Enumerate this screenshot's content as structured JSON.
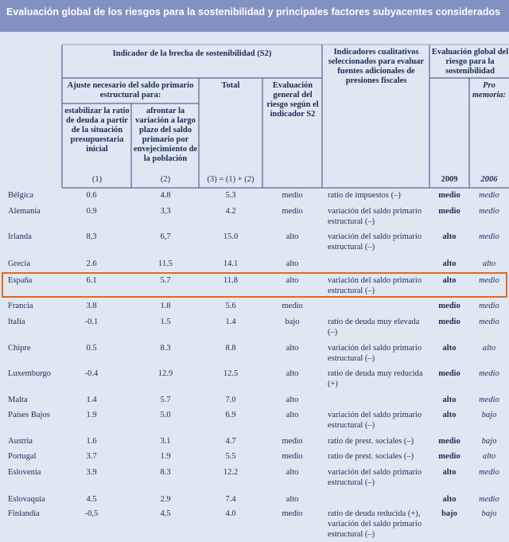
{
  "title": "Evaluación global de los riesgos para la sostenibilidad y principales factores subyacentes considerados",
  "header": {
    "group": "Indicador de la brecha de sostenibilidad (S2)",
    "subgroup": "Ajuste necesario del saldo primario estructural para:",
    "col1": "estabilizar la ratio de deuda a partir de la situación presupuestaria inicial",
    "col1_num": "(1)",
    "col2": "afrontar la variación a largo plazo del saldo primario por envejecimiento de la población",
    "col2_num": "(2)",
    "total": "Total",
    "total_num": "(3) = (1) + (2)",
    "evaluation": "Evaluación general del riesgo según el indicador S2",
    "indicators": "Indicadores cualitativos seleccionados para evaluar fuentes adicionales de presiones fiscales",
    "global": "Evaluación global del riesgo para la sostenibilidad",
    "year1": "2009",
    "memo": "Pro memoria:",
    "year2": "2006"
  },
  "table": {
    "rows": [
      {
        "country": "Bélgica",
        "c1": "0.6",
        "c2": "4.8",
        "total": "5.3",
        "eval": "medio",
        "indicator": "ratio de impuestos (–)",
        "r2009": "medio",
        "r2006": "medio"
      },
      {
        "country": "Alemania",
        "c1": "0.9",
        "c2": "3,3",
        "total": "4.2",
        "eval": "medio",
        "indicator": "variación del saldo primario estructural (–)",
        "r2009": "medio",
        "r2006": "medio"
      },
      {
        "country": "Irlanda",
        "c1": "8,3",
        "c2": "6,7",
        "total": "15.0",
        "eval": "alto",
        "indicator": "variación del saldo primario estructural (–)",
        "r2009": "alto",
        "r2006": "medio"
      },
      {
        "country": "Grecia",
        "c1": "2.6",
        "c2": "11.5",
        "total": "14.1",
        "eval": "alto",
        "r2009": "alto",
        "r2006": "alto"
      },
      {
        "country": "España",
        "c1": "6.1",
        "c2": "5.7",
        "total": "11.8",
        "eval": "alto",
        "indicator": "variación del saldo primario estructural (–)",
        "r2009": "alto",
        "r2006": "medio"
      },
      {
        "country": "Francia",
        "c1": "3.8",
        "c2": "1.8",
        "total": "5.6",
        "eval": "medio",
        "r2009": "medio",
        "r2006": "medio"
      },
      {
        "country": "Italia",
        "c1": "-0.1",
        "c2": "1.5",
        "total": "1.4",
        "eval": "bajo",
        "indicator": "ratio de deuda muy elevada (–)",
        "r2009": "medio",
        "r2006": "medio"
      },
      {
        "country": "Chipre",
        "c1": "0.5",
        "c2": "8.3",
        "total": "8.8",
        "eval": "alto",
        "indicator": "variación del saldo primario estructural (–)",
        "r2009": "alto",
        "r2006": "alto"
      },
      {
        "country": "Luxemburgo",
        "c1": "-0.4",
        "c2": "12.9",
        "total": "12.5",
        "eval": "alto",
        "indicator": "ratio de deuda muy reducida (+)",
        "r2009": "medio",
        "r2006": "medio"
      },
      {
        "country": "Malta",
        "c1": "1.4",
        "c2": "5.7",
        "total": "7.0",
        "eval": "alto",
        "r2009": "alto",
        "r2006": "medio"
      },
      {
        "country": "Países Bajos",
        "c1": "1.9",
        "c2": "5.0",
        "total": "6.9",
        "eval": "alto",
        "indicator": "variación del saldo primario estructural (–)",
        "r2009": "alto",
        "r2006": "bajo"
      },
      {
        "country": "Austria",
        "c1": "1.6",
        "c2": "3.1",
        "total": "4.7",
        "eval": "medio",
        "indicator": "ratio de prest. sociales (–)",
        "r2009": "medio",
        "r2006": "bajo"
      },
      {
        "country": "Portugal",
        "c1": "3.7",
        "c2": "1.9",
        "total": "5.5",
        "eval": "medio",
        "indicator": "ratio de prest. sociales (–)",
        "r2009": "medio",
        "r2006": "alto"
      },
      {
        "country": "Eslovenia",
        "c1": "3.9",
        "c2": "8.3",
        "total": "12.2",
        "eval": "alto",
        "indicator": "variación del saldo primario estructural (–)",
        "r2009": "alto",
        "r2006": "medio"
      },
      {
        "country": "Eslovaquia",
        "c1": "4.5",
        "c2": "2.9",
        "total": "7.4",
        "eval": "alto",
        "r2009": "alto",
        "r2006": "medio"
      },
      {
        "country": "Finlandia",
        "c1": "-0,5",
        "c2": "4,5",
        "total": "4.0",
        "eval": "medio",
        "indicator": "ratio de deuda reducida (+), variación del saldo primario estructural (–)",
        "r2009": "bajo",
        "r2006": "bajo"
      }
    ]
  }
}
